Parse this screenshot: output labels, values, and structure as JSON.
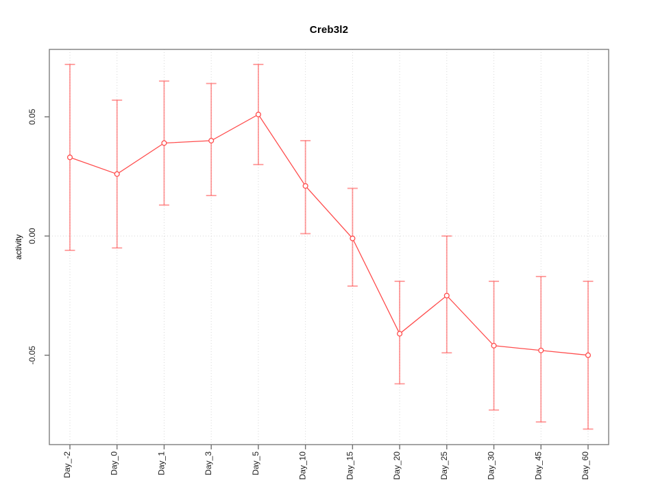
{
  "chart_data": {
    "type": "line",
    "title": "Creb3l2",
    "xlabel": "",
    "ylabel": "activity",
    "categories": [
      "Day_-2",
      "Day_0",
      "Day_1",
      "Day_3",
      "Day_5",
      "Day_10",
      "Day_15",
      "Day_20",
      "Day_25",
      "Day_30",
      "Day_45",
      "Day_60"
    ],
    "series": [
      {
        "name": "activity",
        "values": [
          0.033,
          0.026,
          0.039,
          0.04,
          0.051,
          0.021,
          -0.001,
          -0.041,
          -0.025,
          -0.046,
          -0.048,
          -0.05
        ],
        "upper": [
          0.072,
          0.057,
          0.065,
          0.064,
          0.072,
          0.04,
          0.02,
          -0.019,
          0.0,
          -0.019,
          -0.017,
          -0.019
        ],
        "lower": [
          -0.006,
          -0.005,
          0.013,
          0.017,
          0.03,
          0.001,
          -0.021,
          -0.062,
          -0.049,
          -0.073,
          -0.078,
          -0.081
        ]
      }
    ],
    "yticks": [
      {
        "label": "0.05",
        "value": 0.05
      },
      {
        "label": "0.00",
        "value": 0.0
      },
      {
        "label": "-0.05",
        "value": -0.05
      }
    ],
    "ylim": [
      -0.088,
      0.078
    ],
    "grid": {
      "vertical": "per-category",
      "horizontal_at_zero": true,
      "style": "dotted"
    },
    "legend": "none",
    "marker": "open-circle",
    "colors": {
      "line": "#ff4d4d",
      "marker": "#ff4d4d",
      "errorbar": "rgba(255,70,70,0.55)",
      "grid": "#d6d6d6",
      "box": "#7e7e7e",
      "tick": "#6e6e6e",
      "text": "#1a1a1a"
    }
  }
}
